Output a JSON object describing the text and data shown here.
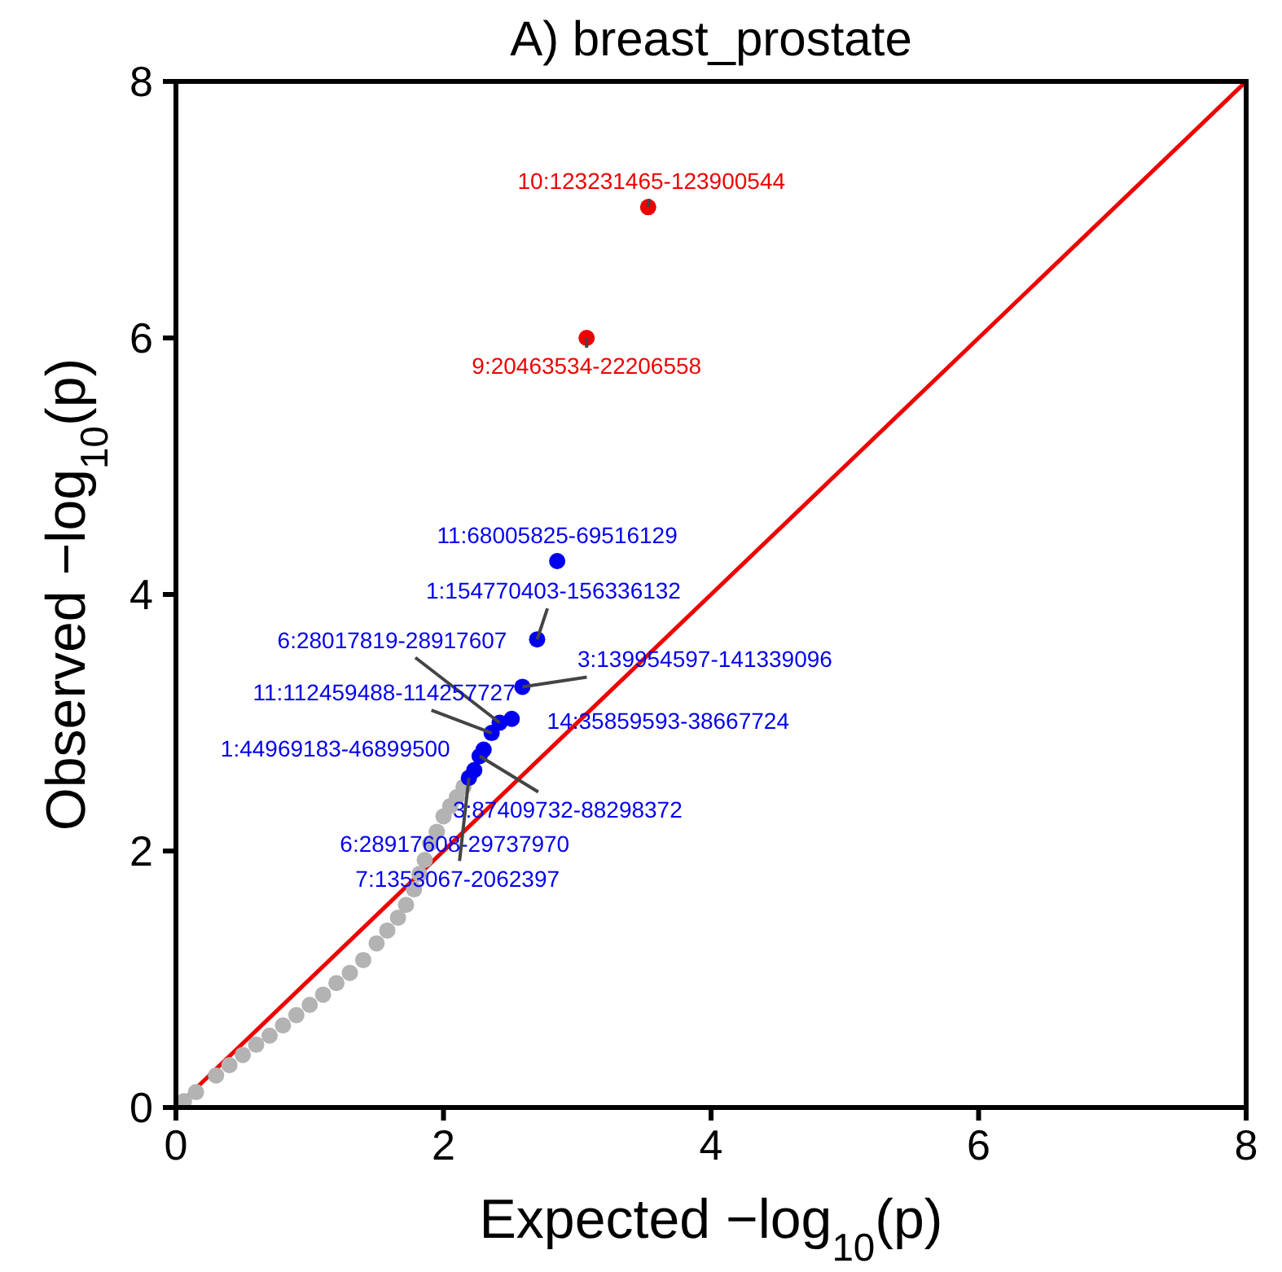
{
  "chart_data": {
    "type": "scatter",
    "title": "A) breast_prostate",
    "xlabel": "Expected −log$_{10}$(p)",
    "ylabel": "Observed −log$_{10}$(p)",
    "xlim": [
      0,
      8
    ],
    "ylim": [
      0,
      8
    ],
    "xticks": [
      0,
      2,
      4,
      6,
      8
    ],
    "yticks": [
      0,
      2,
      4,
      6,
      8
    ],
    "grid": false,
    "marker": "circle",
    "series": [
      {
        "type": "line",
        "color": "#ee0000",
        "x": [
          0,
          8
        ],
        "values": [
          0,
          8
        ],
        "marker": "none"
      },
      {
        "color": "#b3b3b3",
        "x": [
          0.06,
          0.15,
          0.3,
          0.4,
          0.5,
          0.6,
          0.7,
          0.8,
          0.9,
          1.0,
          1.1,
          1.2,
          1.3,
          1.4,
          1.5,
          1.58,
          1.66,
          1.72,
          1.78,
          1.82,
          1.86,
          1.9,
          1.95,
          2.0,
          2.05,
          2.1,
          2.15
        ],
        "values": [
          0.05,
          0.12,
          0.25,
          0.33,
          0.41,
          0.49,
          0.56,
          0.64,
          0.72,
          0.8,
          0.88,
          0.97,
          1.05,
          1.15,
          1.28,
          1.38,
          1.48,
          1.58,
          1.7,
          1.82,
          1.93,
          2.06,
          2.15,
          2.27,
          2.35,
          2.42,
          2.5
        ]
      },
      {
        "color": "#0000ee",
        "x": [
          2.85,
          2.7,
          2.59,
          2.51,
          2.42,
          2.36,
          2.3,
          2.27,
          2.23,
          2.19
        ],
        "values": [
          4.26,
          3.65,
          3.28,
          3.03,
          3.0,
          2.92,
          2.79,
          2.74,
          2.63,
          2.57
        ],
        "value_labels": [
          "11:68005825-69516129",
          "1:154770403-156336132",
          "3:139954597-141339096",
          "14:35859593-38667724",
          "6:28017819-28917607",
          "11:112459488-114257727",
          "1:44969183-46899500",
          "3:87409732-88298372",
          "6:28917608-29737970",
          "7:1353067-2062397"
        ]
      },
      {
        "color": "#ee0000",
        "x": [
          3.53,
          3.07
        ],
        "values": [
          7.02,
          6.0
        ],
        "value_labels": [
          "10:123231465-123900544",
          "9:20463534-22206558"
        ]
      }
    ]
  }
}
